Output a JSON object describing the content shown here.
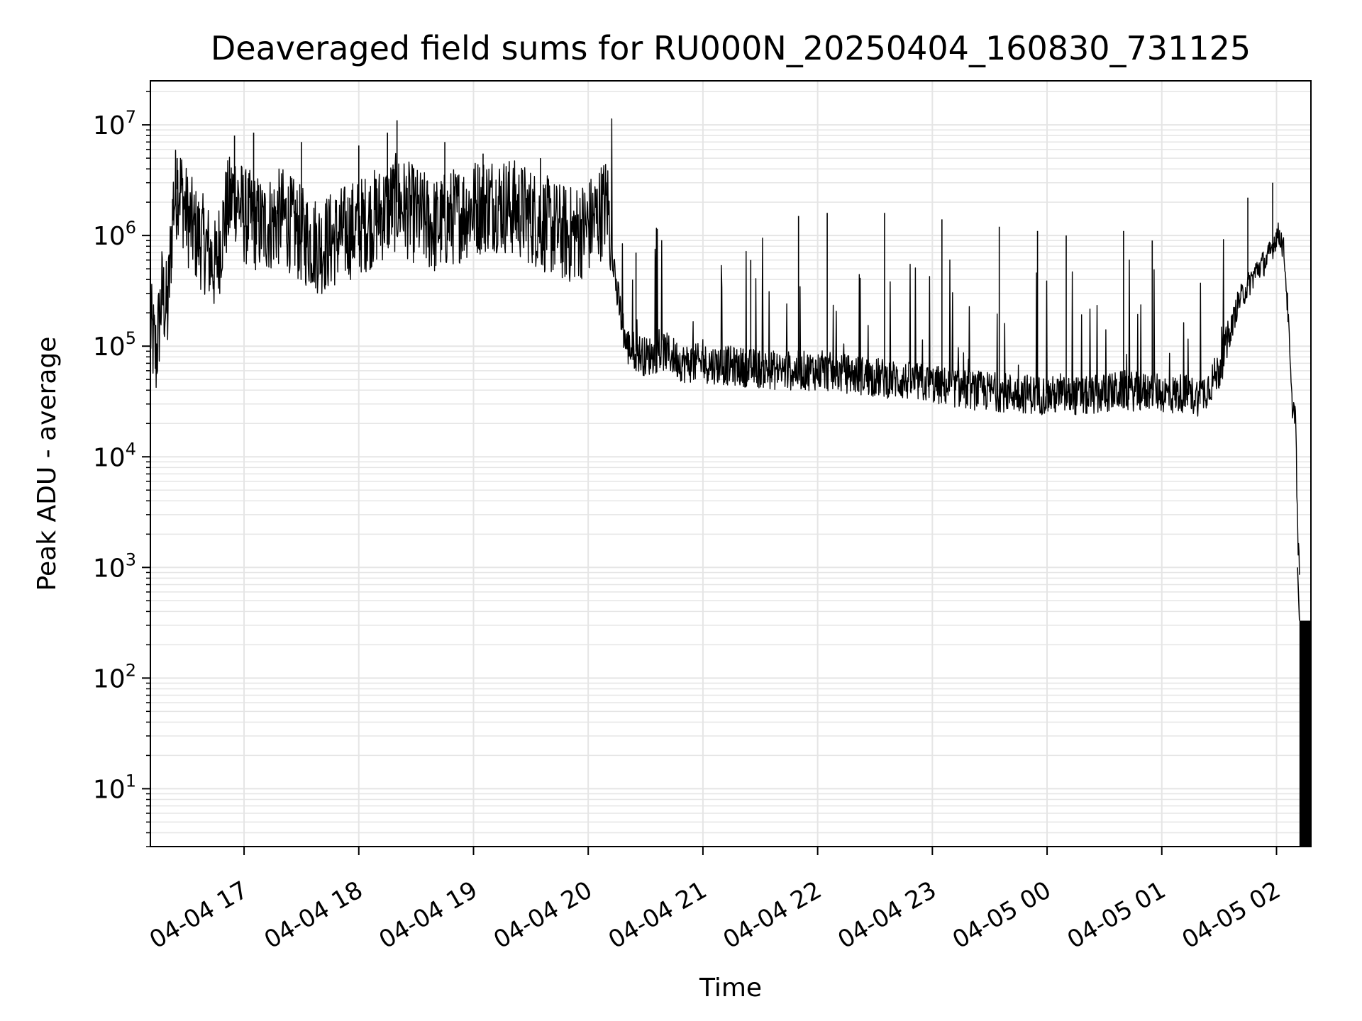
{
  "chart_data": {
    "type": "line",
    "title": "Deaveraged field sums for RU000N_20250404_160830_731125",
    "xlabel": "Time",
    "ylabel": "Peak ADU - average",
    "y_scale": "log",
    "ylim": [
      3,
      25000000
    ],
    "xlim": [
      "2025-04-04 16:11",
      "2025-04-05 02:18"
    ],
    "x_tick_labels": [
      "04-04 17",
      "04-04 18",
      "04-04 19",
      "04-04 20",
      "04-04 21",
      "04-04 22",
      "04-04 23",
      "04-05 00",
      "04-05 01",
      "04-05 02"
    ],
    "x_ticks": [
      "2025-04-04 17:00",
      "2025-04-04 18:00",
      "2025-04-04 19:00",
      "2025-04-04 20:00",
      "2025-04-04 21:00",
      "2025-04-04 22:00",
      "2025-04-04 23:00",
      "2025-04-05 00:00",
      "2025-04-05 01:00",
      "2025-04-05 02:00"
    ],
    "y_ticks": [
      10,
      100,
      1000,
      10000,
      100000,
      1000000,
      10000000
    ],
    "y_tick_labels": [
      {
        "base": "10",
        "exp": "1"
      },
      {
        "base": "10",
        "exp": "2"
      },
      {
        "base": "10",
        "exp": "3"
      },
      {
        "base": "10",
        "exp": "4"
      },
      {
        "base": "10",
        "exp": "5"
      },
      {
        "base": "10",
        "exp": "6"
      },
      {
        "base": "10",
        "exp": "7"
      }
    ],
    "grid": true,
    "line_color": "#000000",
    "grid_color": "#e5e5e5",
    "series": [
      {
        "x": [
          "2025-04-04 16:11",
          "2025-04-04 16:14",
          "2025-04-04 16:17",
          "2025-04-04 16:20",
          "2025-04-04 16:23",
          "2025-04-04 16:26",
          "2025-04-04 16:30",
          "2025-04-04 16:35",
          "2025-04-04 16:40",
          "2025-04-04 16:45",
          "2025-04-04 16:50",
          "2025-04-04 16:55",
          "2025-04-04 17:00",
          "2025-04-04 17:10",
          "2025-04-04 17:20",
          "2025-04-04 17:30",
          "2025-04-04 17:40",
          "2025-04-04 17:50",
          "2025-04-04 18:00",
          "2025-04-04 18:10",
          "2025-04-04 18:20",
          "2025-04-04 18:30",
          "2025-04-04 18:40",
          "2025-04-04 18:50",
          "2025-04-04 19:00",
          "2025-04-04 19:10",
          "2025-04-04 19:20",
          "2025-04-04 19:30",
          "2025-04-04 19:40",
          "2025-04-04 19:50",
          "2025-04-04 20:00",
          "2025-04-04 20:05",
          "2025-04-04 20:08",
          "2025-04-04 20:10",
          "2025-04-04 20:12",
          "2025-04-04 20:15",
          "2025-04-04 20:20",
          "2025-04-04 20:30",
          "2025-04-04 20:40",
          "2025-04-04 20:50",
          "2025-04-04 21:00",
          "2025-04-04 21:20",
          "2025-04-04 21:40",
          "2025-04-04 22:00",
          "2025-04-04 22:20",
          "2025-04-04 22:40",
          "2025-04-04 23:00",
          "2025-04-04 23:20",
          "2025-04-04 23:40",
          "2025-04-05 00:00",
          "2025-04-05 00:20",
          "2025-04-05 00:40",
          "2025-04-05 00:50",
          "2025-04-05 00:55",
          "2025-04-05 01:00",
          "2025-04-05 01:05",
          "2025-04-05 01:10",
          "2025-04-05 01:15",
          "2025-04-05 01:20",
          "2025-04-05 01:25",
          "2025-04-05 01:30",
          "2025-04-05 01:35",
          "2025-04-05 01:40",
          "2025-04-05 01:45",
          "2025-04-05 01:50",
          "2025-04-05 01:55",
          "2025-04-05 01:58",
          "2025-04-05 02:00",
          "2025-04-05 02:02",
          "2025-04-05 02:04",
          "2025-04-05 02:06",
          "2025-04-05 02:08",
          "2025-04-05 02:10",
          "2025-04-05 02:11",
          "2025-04-05 02:12",
          "2025-04-05 02:13",
          "2025-04-05 02:14",
          "2025-04-05 02:15",
          "2025-04-05 02:16",
          "2025-04-05 02:17",
          "2025-04-05 02:18"
        ],
        "y": [
          150000,
          80000,
          300000,
          200000,
          2000000,
          3000000,
          1500000,
          1000000,
          800000,
          500000,
          1500000,
          2500000,
          1500000,
          1200000,
          1500000,
          1000000,
          800000,
          1000000,
          1200000,
          1500000,
          2000000,
          1500000,
          1200000,
          1500000,
          1800000,
          2000000,
          1800000,
          1500000,
          1200000,
          1000000,
          1200000,
          1500000,
          1800000,
          2000000,
          1000000,
          300000,
          100000,
          80000,
          90000,
          70000,
          70000,
          65000,
          60000,
          60000,
          55000,
          50000,
          45000,
          40000,
          38000,
          36000,
          35000,
          40000,
          38000,
          40000,
          38000,
          36000,
          38000,
          36000,
          35000,
          45000,
          60000,
          120000,
          250000,
          350000,
          500000,
          600000,
          800000,
          1000000,
          1000000,
          700000,
          200000,
          30000,
          25000,
          2000,
          1000,
          300,
          300,
          300,
          300,
          300,
          300
        ],
        "spikes": [
          {
            "x": "2025-04-04 16:25",
            "y": 5000000
          },
          {
            "x": "2025-04-04 16:55",
            "y": 8000000
          },
          {
            "x": "2025-04-04 17:05",
            "y": 8500000
          },
          {
            "x": "2025-04-04 17:30",
            "y": 7000000
          },
          {
            "x": "2025-04-04 18:00",
            "y": 6500000
          },
          {
            "x": "2025-04-04 18:15",
            "y": 8500000
          },
          {
            "x": "2025-04-04 18:20",
            "y": 11000000
          },
          {
            "x": "2025-04-04 18:45",
            "y": 7000000
          },
          {
            "x": "2025-04-04 19:05",
            "y": 5500000
          },
          {
            "x": "2025-04-04 19:35",
            "y": 5000000
          },
          {
            "x": "2025-04-04 20:25",
            "y": 700000
          },
          {
            "x": "2025-04-04 21:25",
            "y": 600000
          },
          {
            "x": "2025-04-04 21:50",
            "y": 1500000
          },
          {
            "x": "2025-04-04 22:05",
            "y": 1600000
          },
          {
            "x": "2025-04-04 22:35",
            "y": 1600000
          },
          {
            "x": "2025-04-04 23:05",
            "y": 1400000
          },
          {
            "x": "2025-04-04 23:35",
            "y": 1200000
          },
          {
            "x": "2025-04-04 23:55",
            "y": 1100000
          },
          {
            "x": "2025-04-05 00:10",
            "y": 1000000
          },
          {
            "x": "2025-04-05 00:40",
            "y": 1100000
          },
          {
            "x": "2025-04-05 00:55",
            "y": 900000
          },
          {
            "x": "2025-04-05 01:45",
            "y": 2200000
          },
          {
            "x": "2025-04-05 01:58",
            "y": 3000000
          }
        ]
      }
    ]
  }
}
